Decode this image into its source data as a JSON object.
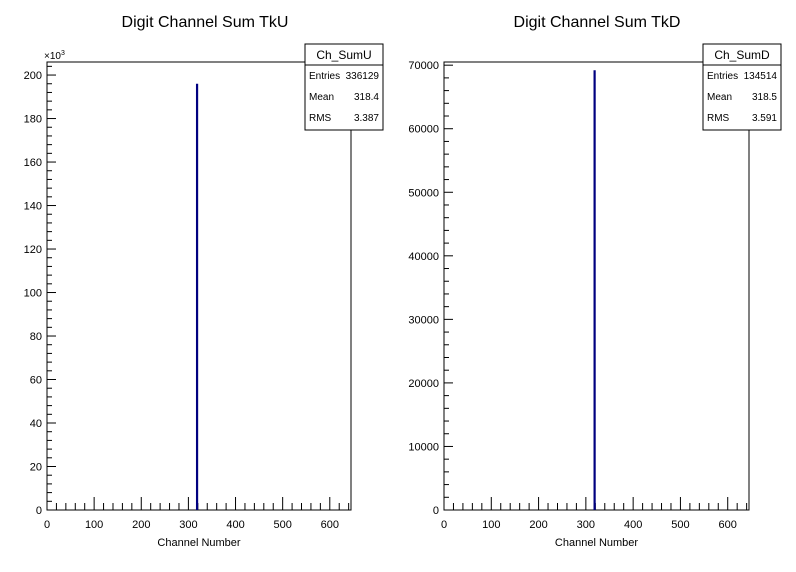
{
  "chart_data": [
    {
      "type": "bar",
      "title": "Digit Channel Sum TkU",
      "xlabel": "Channel Number",
      "ylabel": "",
      "xlim": [
        0,
        645
      ],
      "ylim": [
        0,
        206000
      ],
      "x_ticks": [
        0,
        100,
        200,
        300,
        400,
        500,
        600
      ],
      "x_tick_labels": [
        "0",
        "100",
        "200",
        "300",
        "400",
        "500",
        "600"
      ],
      "y_ticks": [
        0,
        20000,
        40000,
        60000,
        80000,
        100000,
        120000,
        140000,
        160000,
        180000,
        200000
      ],
      "y_tick_labels": [
        "0",
        "20",
        "40",
        "60",
        "80",
        "100",
        "120",
        "140",
        "160",
        "180",
        "200"
      ],
      "y_multiplier": {
        "base": "×10",
        "exponent": "3"
      },
      "series": [
        {
          "x": [
            318.4
          ],
          "values": [
            196000
          ]
        }
      ],
      "series_color": "#000080",
      "stats": {
        "name": "Ch_SumU",
        "rows": [
          {
            "label": "Entries",
            "value": "336129"
          },
          {
            "label": "Mean",
            "value": "318.4"
          },
          {
            "label": "RMS",
            "value": "3.387"
          }
        ]
      }
    },
    {
      "type": "bar",
      "title": "Digit Channel Sum TkD",
      "xlabel": "Channel Number",
      "ylabel": "",
      "xlim": [
        0,
        645
      ],
      "ylim": [
        0,
        70500
      ],
      "x_ticks": [
        0,
        100,
        200,
        300,
        400,
        500,
        600
      ],
      "x_tick_labels": [
        "0",
        "100",
        "200",
        "300",
        "400",
        "500",
        "600"
      ],
      "y_ticks": [
        0,
        10000,
        20000,
        30000,
        40000,
        50000,
        60000,
        70000
      ],
      "y_tick_labels": [
        "0",
        "10000",
        "20000",
        "30000",
        "40000",
        "50000",
        "60000",
        "70000"
      ],
      "y_multiplier": null,
      "series": [
        {
          "x": [
            318.5
          ],
          "values": [
            69200
          ]
        }
      ],
      "series_color": "#000080",
      "stats": {
        "name": "Ch_SumD",
        "rows": [
          {
            "label": "Entries",
            "value": "134514"
          },
          {
            "label": "Mean",
            "value": "318.5"
          },
          {
            "label": "RMS",
            "value": "3.591"
          }
        ]
      }
    }
  ]
}
